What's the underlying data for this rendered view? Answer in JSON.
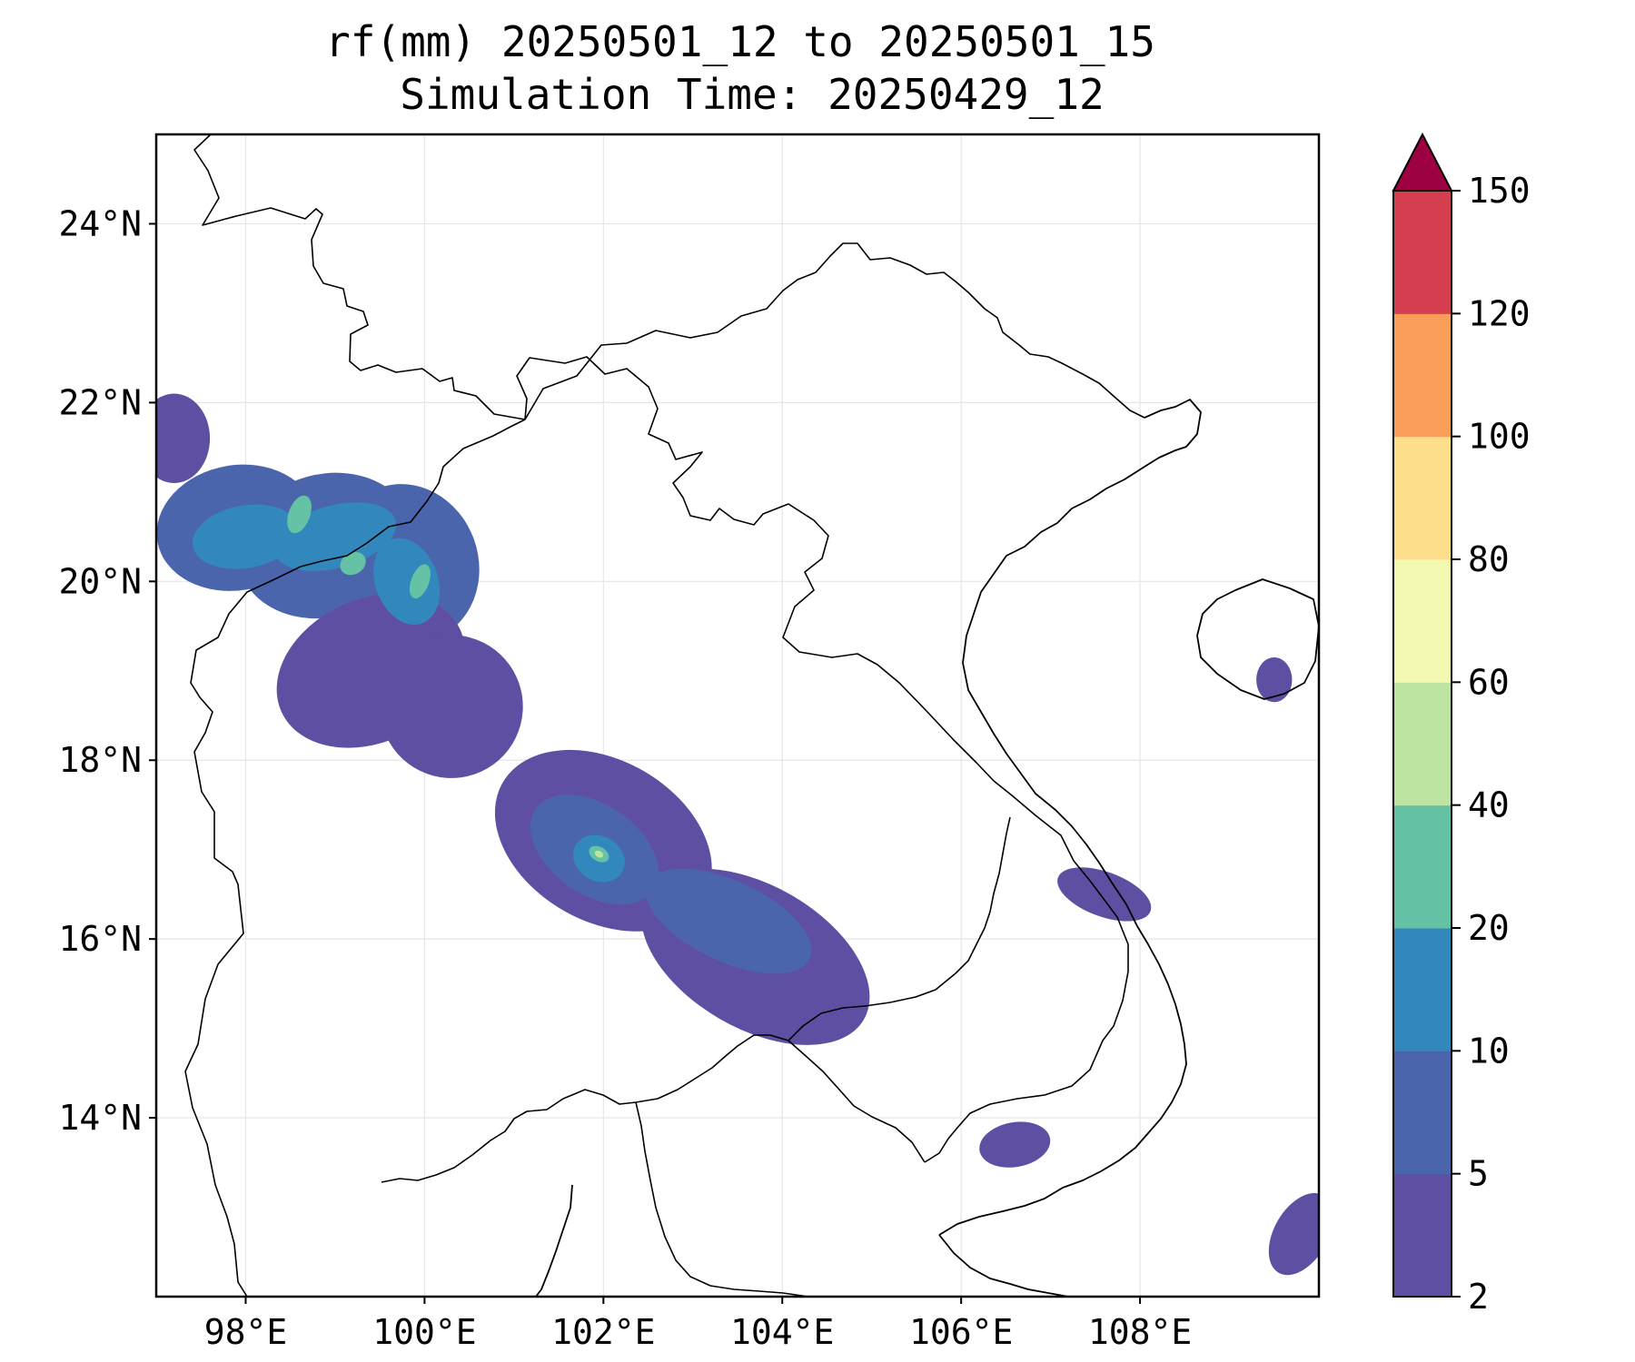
{
  "title": {
    "line1": "rf(mm) 20250501_12 to 20250501_15",
    "line2": "Simulation Time: 20250429_12"
  },
  "map": {
    "lon_range": [
      97,
      110
    ],
    "lat_range": [
      12,
      25
    ],
    "lon_ticks": [
      {
        "value": 98,
        "label": "98°E"
      },
      {
        "value": 100,
        "label": "100°E"
      },
      {
        "value": 102,
        "label": "102°E"
      },
      {
        "value": 104,
        "label": "104°E"
      },
      {
        "value": 106,
        "label": "106°E"
      },
      {
        "value": 108,
        "label": "108°E"
      }
    ],
    "lat_ticks": [
      {
        "value": 14,
        "label": "14°N"
      },
      {
        "value": 16,
        "label": "16°N"
      },
      {
        "value": 18,
        "label": "18°N"
      },
      {
        "value": 20,
        "label": "20°N"
      },
      {
        "value": 22,
        "label": "22°N"
      },
      {
        "value": 24,
        "label": "24°N"
      }
    ],
    "gridlines": true
  },
  "colorbar": {
    "levels": [
      2,
      5,
      10,
      20,
      40,
      60,
      80,
      100,
      120,
      150
    ],
    "labels": [
      "2",
      "5",
      "10",
      "20",
      "40",
      "60",
      "80",
      "100",
      "120",
      "150"
    ],
    "colors": [
      "#5e4fa2",
      "#4b65ad",
      "#3288bd",
      "#66c2a5",
      "#bde4a0",
      "#f3f9b0",
      "#fddf8b",
      "#f99d59",
      "#d53e4f",
      "#9e0142"
    ],
    "extend": "max"
  },
  "chart_data": {
    "type": "heatmap",
    "variable": "rf(mm)",
    "title": "rf(mm) 20250501_12 to 20250501_15",
    "subtitle": "Simulation Time: 20250429_12",
    "xlim": [
      97,
      110
    ],
    "ylim": [
      12,
      25
    ],
    "rain_areas": [
      {
        "lon": 97.9,
        "lat": 20.6,
        "rlon": 0.9,
        "rlat": 0.7,
        "rot": -10,
        "level": 5
      },
      {
        "lon": 98.9,
        "lat": 20.4,
        "rlon": 1.0,
        "rlat": 0.8,
        "rot": -15,
        "level": 5
      },
      {
        "lon": 99.8,
        "lat": 20.2,
        "rlon": 0.8,
        "rlat": 0.9,
        "rot": -20,
        "level": 5
      },
      {
        "lon": 99.4,
        "lat": 19.0,
        "rlon": 1.1,
        "rlat": 0.8,
        "rot": -25,
        "level": 2
      },
      {
        "lon": 100.3,
        "lat": 18.6,
        "rlon": 0.8,
        "rlat": 0.8,
        "rot": -30,
        "level": 2
      },
      {
        "lon": 97.2,
        "lat": 21.6,
        "rlon": 0.4,
        "rlat": 0.5,
        "rot": 0,
        "level": 2
      },
      {
        "lon": 98.0,
        "lat": 20.5,
        "rlon": 0.6,
        "rlat": 0.35,
        "rot": -10,
        "level": 10
      },
      {
        "lon": 99.0,
        "lat": 20.5,
        "rlon": 0.7,
        "rlat": 0.35,
        "rot": -15,
        "level": 10
      },
      {
        "lon": 99.8,
        "lat": 20.0,
        "rlon": 0.35,
        "rlat": 0.5,
        "rot": -20,
        "level": 10
      },
      {
        "lon": 98.6,
        "lat": 20.75,
        "rlon": 0.12,
        "rlat": 0.22,
        "rot": 20,
        "level": 20
      },
      {
        "lon": 99.2,
        "lat": 20.2,
        "rlon": 0.15,
        "rlat": 0.12,
        "rot": -30,
        "level": 20
      },
      {
        "lon": 99.95,
        "lat": 20.0,
        "rlon": 0.1,
        "rlat": 0.2,
        "rot": 20,
        "level": 20
      },
      {
        "lon": 102.0,
        "lat": 17.1,
        "rlon": 1.3,
        "rlat": 0.9,
        "rot": 30,
        "level": 2
      },
      {
        "lon": 103.7,
        "lat": 15.8,
        "rlon": 1.4,
        "rlat": 0.8,
        "rot": 30,
        "level": 2
      },
      {
        "lon": 101.9,
        "lat": 17.0,
        "rlon": 0.8,
        "rlat": 0.5,
        "rot": 35,
        "level": 5
      },
      {
        "lon": 103.4,
        "lat": 16.2,
        "rlon": 1.0,
        "rlat": 0.45,
        "rot": 25,
        "level": 5
      },
      {
        "lon": 101.95,
        "lat": 16.9,
        "rlon": 0.3,
        "rlat": 0.25,
        "rot": 30,
        "level": 10
      },
      {
        "lon": 101.95,
        "lat": 16.95,
        "rlon": 0.12,
        "rlat": 0.08,
        "rot": 30,
        "level": 20
      },
      {
        "lon": 101.95,
        "lat": 16.95,
        "rlon": 0.05,
        "rlat": 0.035,
        "rot": 30,
        "level": 40
      },
      {
        "lon": 107.6,
        "lat": 16.5,
        "rlon": 0.55,
        "rlat": 0.25,
        "rot": 20,
        "level": 2
      },
      {
        "lon": 109.5,
        "lat": 18.9,
        "rlon": 0.2,
        "rlat": 0.25,
        "rot": 0,
        "level": 2
      },
      {
        "lon": 106.6,
        "lat": 13.7,
        "rlon": 0.4,
        "rlat": 0.25,
        "rot": -10,
        "level": 2
      },
      {
        "lon": 109.8,
        "lat": 12.7,
        "rlon": 0.3,
        "rlat": 0.5,
        "rot": 30,
        "level": 2
      }
    ]
  }
}
